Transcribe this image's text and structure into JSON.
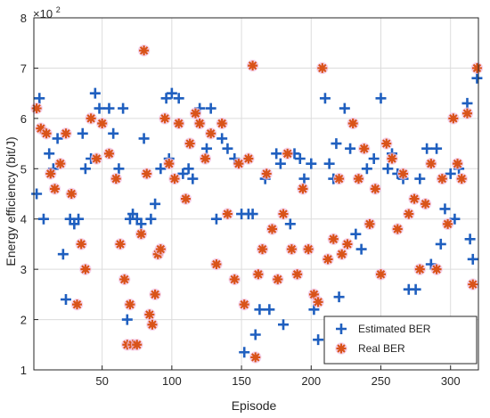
{
  "chart_data": {
    "type": "scatter",
    "title": "",
    "xlabel": "Episode",
    "ylabel": "Energy efficiency (bit/J)",
    "y_exponent_label": "×10",
    "y_exponent_power": "2",
    "xlim": [
      1,
      320
    ],
    "ylim": [
      1,
      8
    ],
    "xticks": [
      50,
      100,
      150,
      200,
      250,
      300
    ],
    "yticks": [
      1,
      2,
      3,
      4,
      5,
      6,
      7,
      8
    ],
    "xtick_labels": [
      "50",
      "100",
      "150",
      "200",
      "250",
      "300"
    ],
    "ytick_labels": [
      "1",
      "2",
      "3",
      "4",
      "5",
      "6",
      "7",
      "8"
    ],
    "grid": true,
    "legend_position": "bottom-right",
    "series": [
      {
        "name": "Estimated BER",
        "marker": "plus",
        "color": "#1f5fbf",
        "points": [
          [
            3,
            4.5
          ],
          [
            5,
            6.4
          ],
          [
            8,
            4.0
          ],
          [
            12,
            5.3
          ],
          [
            15,
            5.0
          ],
          [
            18,
            5.6
          ],
          [
            22,
            3.3
          ],
          [
            24,
            2.4
          ],
          [
            27,
            4.0
          ],
          [
            30,
            3.9
          ],
          [
            33,
            4.0
          ],
          [
            36,
            5.7
          ],
          [
            38,
            5.0
          ],
          [
            42,
            5.2
          ],
          [
            45,
            6.5
          ],
          [
            48,
            6.2
          ],
          [
            55,
            6.2
          ],
          [
            58,
            5.7
          ],
          [
            62,
            5.0
          ],
          [
            65,
            6.2
          ],
          [
            68,
            2.0
          ],
          [
            70,
            4.0
          ],
          [
            72,
            4.1
          ],
          [
            75,
            4.0
          ],
          [
            78,
            3.9
          ],
          [
            80,
            5.6
          ],
          [
            85,
            4.0
          ],
          [
            88,
            4.3
          ],
          [
            92,
            5.0
          ],
          [
            96,
            6.4
          ],
          [
            98,
            5.2
          ],
          [
            100,
            6.5
          ],
          [
            105,
            6.4
          ],
          [
            108,
            4.9
          ],
          [
            112,
            5.0
          ],
          [
            115,
            4.8
          ],
          [
            120,
            6.2
          ],
          [
            125,
            5.4
          ],
          [
            128,
            6.2
          ],
          [
            132,
            4.0
          ],
          [
            136,
            5.6
          ],
          [
            140,
            5.4
          ],
          [
            145,
            5.2
          ],
          [
            150,
            4.1
          ],
          [
            152,
            1.35
          ],
          [
            155,
            4.1
          ],
          [
            158,
            4.1
          ],
          [
            160,
            1.7
          ],
          [
            163,
            2.2
          ],
          [
            167,
            4.8
          ],
          [
            170,
            2.2
          ],
          [
            175,
            5.3
          ],
          [
            178,
            5.1
          ],
          [
            180,
            1.9
          ],
          [
            185,
            3.9
          ],
          [
            188,
            5.3
          ],
          [
            192,
            5.2
          ],
          [
            195,
            4.8
          ],
          [
            200,
            5.1
          ],
          [
            202,
            2.2
          ],
          [
            205,
            1.6
          ],
          [
            210,
            6.4
          ],
          [
            213,
            5.1
          ],
          [
            216,
            4.8
          ],
          [
            218,
            5.5
          ],
          [
            220,
            2.45
          ],
          [
            224,
            6.2
          ],
          [
            228,
            5.4
          ],
          [
            232,
            3.7
          ],
          [
            236,
            3.4
          ],
          [
            240,
            5.0
          ],
          [
            245,
            5.2
          ],
          [
            250,
            6.4
          ],
          [
            255,
            5.0
          ],
          [
            258,
            5.3
          ],
          [
            262,
            4.9
          ],
          [
            266,
            4.8
          ],
          [
            270,
            2.6
          ],
          [
            275,
            2.6
          ],
          [
            278,
            4.8
          ],
          [
            283,
            5.4
          ],
          [
            286,
            3.1
          ],
          [
            290,
            5.4
          ],
          [
            293,
            3.5
          ],
          [
            296,
            4.2
          ],
          [
            300,
            4.9
          ],
          [
            303,
            4.0
          ],
          [
            306,
            5.0
          ],
          [
            312,
            6.3
          ],
          [
            314,
            3.6
          ],
          [
            316,
            3.2
          ],
          [
            319,
            6.8
          ]
        ]
      },
      {
        "name": "Real BER",
        "marker": "asterisk",
        "color": "#d95319",
        "points": [
          [
            3,
            6.2
          ],
          [
            6,
            5.8
          ],
          [
            10,
            5.7
          ],
          [
            13,
            4.9
          ],
          [
            16,
            4.6
          ],
          [
            20,
            5.1
          ],
          [
            24,
            5.7
          ],
          [
            28,
            4.5
          ],
          [
            32,
            2.3
          ],
          [
            35,
            3.5
          ],
          [
            38,
            3.0
          ],
          [
            42,
            6.0
          ],
          [
            46,
            5.2
          ],
          [
            50,
            5.9
          ],
          [
            55,
            5.3
          ],
          [
            60,
            4.8
          ],
          [
            63,
            3.5
          ],
          [
            66,
            2.8
          ],
          [
            68,
            1.5
          ],
          [
            70,
            2.3
          ],
          [
            72,
            1.5
          ],
          [
            75,
            1.5
          ],
          [
            78,
            3.7
          ],
          [
            80,
            7.35
          ],
          [
            82,
            4.9
          ],
          [
            84,
            2.1
          ],
          [
            86,
            1.9
          ],
          [
            88,
            2.5
          ],
          [
            90,
            3.3
          ],
          [
            92,
            3.4
          ],
          [
            95,
            6.0
          ],
          [
            98,
            5.1
          ],
          [
            102,
            4.8
          ],
          [
            105,
            5.9
          ],
          [
            110,
            4.4
          ],
          [
            113,
            5.5
          ],
          [
            117,
            6.1
          ],
          [
            120,
            5.9
          ],
          [
            124,
            5.2
          ],
          [
            128,
            5.7
          ],
          [
            132,
            3.1
          ],
          [
            136,
            5.9
          ],
          [
            140,
            4.1
          ],
          [
            145,
            2.8
          ],
          [
            148,
            5.1
          ],
          [
            152,
            2.3
          ],
          [
            155,
            5.2
          ],
          [
            158,
            7.05
          ],
          [
            160,
            1.25
          ],
          [
            162,
            2.9
          ],
          [
            165,
            3.4
          ],
          [
            168,
            4.9
          ],
          [
            172,
            3.8
          ],
          [
            176,
            2.8
          ],
          [
            180,
            4.1
          ],
          [
            183,
            5.3
          ],
          [
            186,
            3.4
          ],
          [
            190,
            2.9
          ],
          [
            194,
            4.6
          ],
          [
            198,
            3.4
          ],
          [
            202,
            2.5
          ],
          [
            205,
            2.35
          ],
          [
            208,
            7.0
          ],
          [
            212,
            3.2
          ],
          [
            216,
            3.6
          ],
          [
            220,
            4.8
          ],
          [
            222,
            3.3
          ],
          [
            226,
            3.5
          ],
          [
            230,
            5.9
          ],
          [
            234,
            4.8
          ],
          [
            238,
            5.4
          ],
          [
            242,
            3.9
          ],
          [
            246,
            4.6
          ],
          [
            250,
            2.9
          ],
          [
            254,
            5.5
          ],
          [
            258,
            5.2
          ],
          [
            262,
            3.8
          ],
          [
            266,
            4.9
          ],
          [
            270,
            4.1
          ],
          [
            274,
            4.4
          ],
          [
            278,
            3.0
          ],
          [
            282,
            4.3
          ],
          [
            286,
            5.1
          ],
          [
            290,
            3.0
          ],
          [
            294,
            4.8
          ],
          [
            298,
            3.9
          ],
          [
            302,
            6.0
          ],
          [
            305,
            5.1
          ],
          [
            308,
            4.8
          ],
          [
            312,
            6.1
          ],
          [
            316,
            2.7
          ],
          [
            319,
            7.0
          ]
        ]
      }
    ]
  },
  "legend": {
    "estimated_label": "Estimated BER",
    "real_label": "Real BER"
  }
}
